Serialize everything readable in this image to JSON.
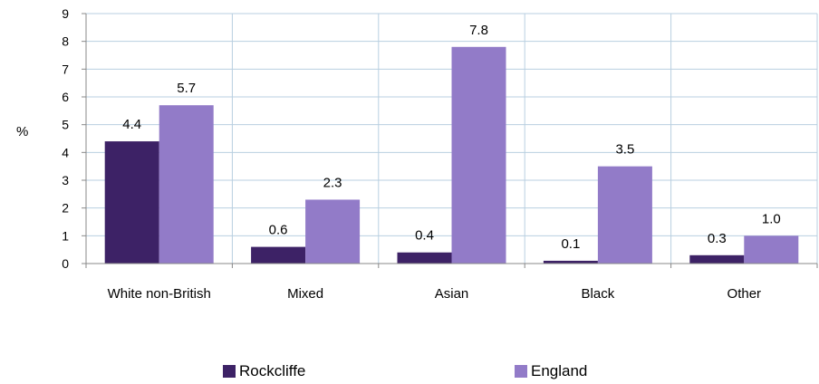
{
  "chart_data": {
    "type": "bar",
    "categories": [
      "White non-British",
      "Mixed",
      "Asian",
      "Black",
      "Other"
    ],
    "series": [
      {
        "name": "Rockcliffe",
        "values": [
          4.4,
          0.6,
          0.4,
          0.1,
          0.3
        ],
        "labels": [
          "4.4",
          "0.6",
          "0.4",
          "0.1",
          "0.3"
        ],
        "color": "#3d2266"
      },
      {
        "name": "England",
        "values": [
          5.7,
          2.3,
          7.8,
          3.5,
          1.0
        ],
        "labels": [
          "5.7",
          "2.3",
          "7.8",
          "3.5",
          "1.0"
        ],
        "color": "#927bc8"
      }
    ],
    "ylabel": "%",
    "ylim": [
      0,
      9
    ],
    "yticks": [
      "0",
      "1",
      "2",
      "3",
      "4",
      "5",
      "6",
      "7",
      "8",
      "9"
    ],
    "grid": true,
    "legend_position": "bottom",
    "grid_color": "#b8cfe0",
    "axis_color": "#888888"
  }
}
